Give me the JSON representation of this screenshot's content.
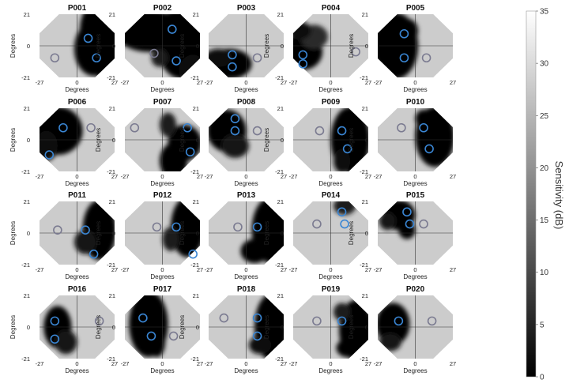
{
  "chart_data": {
    "type": "heatmap",
    "figure": "visual field sensitivity maps",
    "panels": [
      {
        "title": "P001",
        "blue": [
          [
            8,
            5
          ],
          [
            14,
            -8
          ]
        ],
        "gray": [
          [
            -16,
            -8
          ]
        ],
        "blobs": [
          [
            18,
            10,
            16,
            22,
            0
          ],
          [
            12,
            -2,
            14,
            18,
            0
          ],
          [
            24,
            -14,
            12,
            10,
            0
          ]
        ]
      },
      {
        "title": "P002",
        "blue": [
          [
            7,
            11
          ],
          [
            10,
            -10
          ]
        ],
        "gray": [
          [
            -6,
            -5
          ]
        ],
        "blobs": [
          [
            -10,
            10,
            24,
            14,
            0
          ],
          [
            14,
            2,
            18,
            24,
            0
          ],
          [
            -2,
            -8,
            6,
            6,
            4
          ],
          [
            22,
            -16,
            10,
            10,
            2
          ]
        ]
      },
      {
        "title": "P003",
        "blue": [
          [
            -10,
            -6
          ],
          [
            -10,
            -14
          ]
        ],
        "gray": [
          [
            8,
            -8
          ]
        ],
        "blobs": [
          [
            -12,
            -12,
            16,
            10,
            0
          ],
          [
            -20,
            -8,
            10,
            6,
            2
          ]
        ]
      },
      {
        "title": "P004",
        "blue": [
          [
            -20,
            -6
          ],
          [
            -20,
            -12
          ]
        ],
        "gray": [
          [
            18,
            -4
          ]
        ],
        "blobs": [
          [
            -20,
            -4,
            14,
            12,
            0
          ],
          [
            -12,
            6,
            10,
            8,
            6
          ],
          [
            -22,
            10,
            8,
            6,
            2
          ]
        ]
      },
      {
        "title": "P005",
        "blue": [
          [
            -8,
            8
          ],
          [
            -8,
            -8
          ]
        ],
        "gray": [
          [
            8,
            -8
          ]
        ],
        "blobs": [
          [
            -14,
            0,
            16,
            22,
            0
          ],
          [
            -6,
            10,
            8,
            8,
            0
          ]
        ]
      },
      {
        "title": "P006",
        "blue": [
          [
            -10,
            8
          ],
          [
            -20,
            -10
          ]
        ],
        "gray": [
          [
            10,
            8
          ]
        ],
        "blobs": [
          [
            -14,
            6,
            18,
            16,
            0
          ],
          [
            -22,
            -4,
            8,
            10,
            2
          ]
        ]
      },
      {
        "title": "P007",
        "blue": [
          [
            18,
            8
          ],
          [
            20,
            -8
          ]
        ],
        "gray": [
          [
            -20,
            8
          ]
        ],
        "blobs": [
          [
            8,
            -14,
            10,
            12,
            0
          ],
          [
            16,
            -2,
            12,
            12,
            0
          ],
          [
            4,
            10,
            6,
            8,
            4
          ]
        ]
      },
      {
        "title": "P008",
        "blue": [
          [
            -8,
            14
          ],
          [
            -8,
            6
          ]
        ],
        "gray": [
          [
            8,
            6
          ]
        ],
        "blobs": [
          [
            -14,
            6,
            14,
            14,
            0
          ],
          [
            -8,
            -4,
            10,
            8,
            3
          ]
        ]
      },
      {
        "title": "P009",
        "blue": [
          [
            8,
            6
          ],
          [
            12,
            -6
          ]
        ],
        "gray": [
          [
            -8,
            6
          ]
        ],
        "blobs": [
          [
            14,
            0,
            14,
            22,
            0
          ],
          [
            8,
            -14,
            6,
            8,
            2
          ]
        ]
      },
      {
        "title": "P010",
        "blue": [
          [
            6,
            8
          ],
          [
            10,
            -6
          ]
        ],
        "gray": [
          [
            -10,
            8
          ]
        ],
        "blobs": [
          [
            14,
            2,
            14,
            20,
            0
          ],
          [
            6,
            14,
            6,
            6,
            0
          ]
        ]
      },
      {
        "title": "P011",
        "blue": [
          [
            6,
            2
          ],
          [
            12,
            -14
          ]
        ],
        "gray": [
          [
            -14,
            2
          ]
        ],
        "blobs": [
          [
            16,
            2,
            12,
            20,
            0
          ],
          [
            6,
            -6,
            8,
            8,
            3
          ]
        ]
      },
      {
        "title": "P012",
        "blue": [
          [
            10,
            4
          ],
          [
            22,
            -14
          ]
        ],
        "gray": [
          [
            -4,
            4
          ]
        ],
        "blobs": [
          [
            18,
            4,
            12,
            20,
            0
          ],
          [
            6,
            -4,
            6,
            8,
            4
          ]
        ]
      },
      {
        "title": "P013",
        "blue": [
          [
            8,
            4
          ]
        ],
        "gray": [
          [
            -6,
            4
          ]
        ],
        "blobs": [
          [
            18,
            2,
            14,
            22,
            0
          ],
          [
            6,
            -12,
            10,
            8,
            0
          ]
        ]
      },
      {
        "title": "P014",
        "blue": [
          [
            8,
            14
          ],
          [
            10,
            6
          ]
        ],
        "gray": [
          [
            -10,
            6
          ]
        ],
        "blobs": [
          [
            10,
            18,
            8,
            6,
            4
          ]
        ]
      },
      {
        "title": "P015",
        "blue": [
          [
            -6,
            14
          ],
          [
            -4,
            6
          ]
        ],
        "gray": [
          [
            6,
            6
          ]
        ],
        "blobs": [
          [
            -12,
            12,
            12,
            10,
            0
          ],
          [
            -6,
            2,
            6,
            6,
            0
          ],
          [
            -20,
            8,
            6,
            6,
            3
          ]
        ]
      },
      {
        "title": "P016",
        "blue": [
          [
            -16,
            4
          ],
          [
            -16,
            -8
          ]
        ],
        "gray": [
          [
            16,
            4
          ]
        ],
        "blobs": [
          [
            -14,
            0,
            10,
            14,
            0
          ],
          [
            -8,
            -10,
            8,
            8,
            3
          ]
        ]
      },
      {
        "title": "P017",
        "blue": [
          [
            -14,
            6
          ],
          [
            -8,
            -6
          ]
        ],
        "gray": [
          [
            8,
            -6
          ]
        ],
        "blobs": [
          [
            -10,
            2,
            14,
            22,
            0
          ],
          [
            -4,
            -10,
            6,
            10,
            0
          ]
        ]
      },
      {
        "title": "P018",
        "blue": [
          [
            8,
            6
          ],
          [
            8,
            -6
          ]
        ],
        "gray": [
          [
            -16,
            6
          ]
        ],
        "blobs": [
          [
            18,
            0,
            12,
            22,
            0
          ],
          [
            10,
            -12,
            8,
            6,
            2
          ]
        ]
      },
      {
        "title": "P019",
        "blue": [
          [
            8,
            4
          ]
        ],
        "gray": [
          [
            -10,
            4
          ]
        ],
        "blobs": [
          [
            18,
            -2,
            12,
            20,
            0
          ],
          [
            12,
            -14,
            8,
            6,
            0
          ],
          [
            8,
            10,
            6,
            6,
            4
          ]
        ]
      },
      {
        "title": "P020",
        "blue": [
          [
            -12,
            4
          ]
        ],
        "gray": [
          [
            12,
            4
          ]
        ],
        "blobs": [
          [
            -16,
            2,
            12,
            14,
            0
          ],
          [
            -18,
            -10,
            8,
            6,
            3
          ]
        ]
      }
    ],
    "xlabel": "Degrees",
    "ylabel": "Degrees",
    "xticks": [
      "-27",
      "0",
      "27"
    ],
    "yticks": [
      "21",
      "0",
      "-21"
    ],
    "xlim": [
      -27,
      27
    ],
    "ylim": [
      -21,
      21
    ],
    "colorbar": {
      "label": "Sensitivity (dB)",
      "min": 0,
      "max": 35,
      "ticks": [
        "0",
        "5",
        "10",
        "15",
        "20",
        "25",
        "30",
        "35"
      ],
      "colormap": "gray"
    },
    "marker_colors": {
      "blue": "#3a86d4",
      "gray": "#7a7a90"
    }
  }
}
